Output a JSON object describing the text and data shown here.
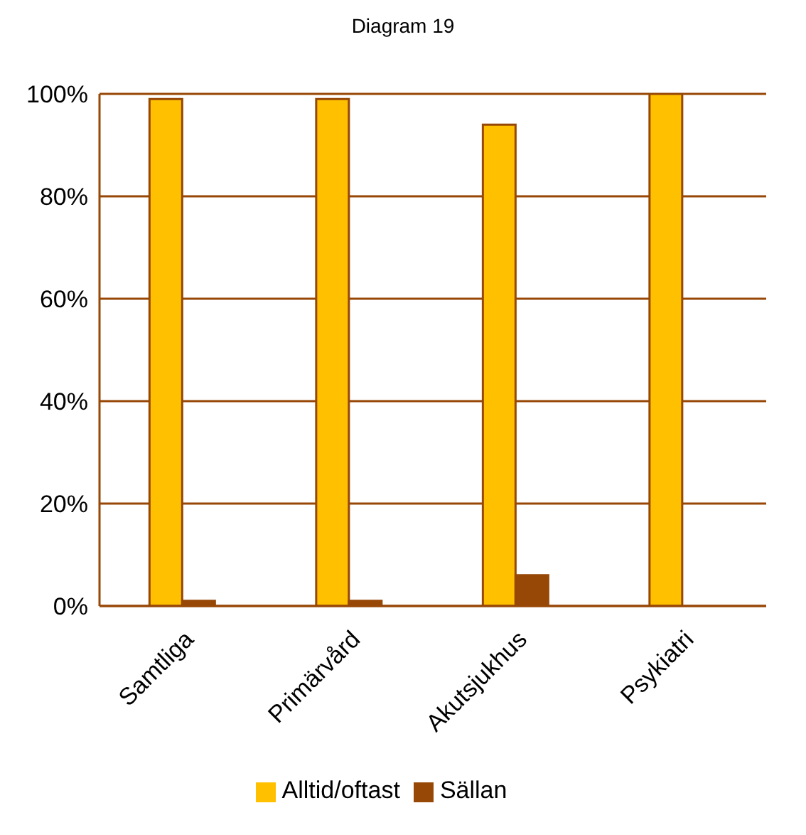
{
  "chart_data": {
    "type": "bar",
    "title": "Diagram 19",
    "categories": [
      "Samtliga",
      "Primärvård",
      "Akutsjukhus",
      "Psykiatri"
    ],
    "series": [
      {
        "name": "Alltid/oftast",
        "color": "#ffc000",
        "values": [
          99,
          99,
          94,
          100
        ]
      },
      {
        "name": "Sällan",
        "color": "#974706",
        "values": [
          1,
          1,
          6,
          0
        ]
      }
    ],
    "ylim": [
      0,
      100
    ],
    "yticks": [
      {
        "value": 0,
        "label": "0%"
      },
      {
        "value": 20,
        "label": "20%"
      },
      {
        "value": 40,
        "label": "40%"
      },
      {
        "value": 60,
        "label": "60%"
      },
      {
        "value": 80,
        "label": "80%"
      },
      {
        "value": 100,
        "label": "100%"
      }
    ],
    "grid": "y",
    "legend": "bottom"
  }
}
